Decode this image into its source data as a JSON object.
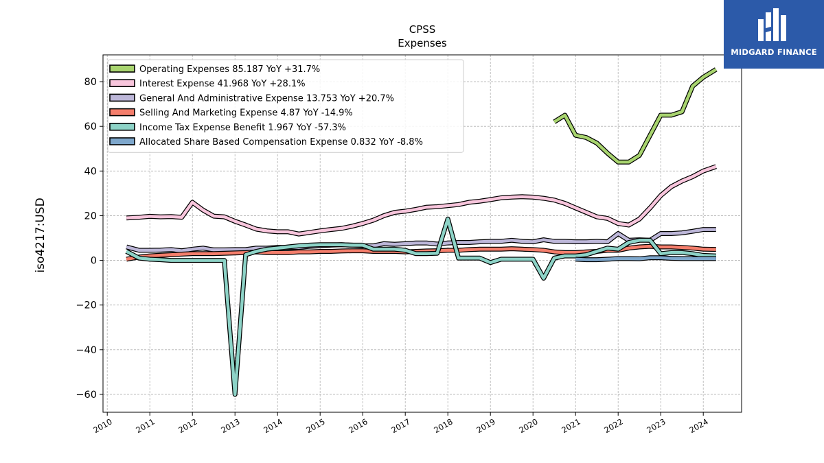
{
  "brand": {
    "name": "MIDGARD FINANCE",
    "bg_color": "#2c5aa9"
  },
  "chart_data": {
    "type": "line",
    "title": "CPSS",
    "subtitle": "Expenses",
    "xlabel": "",
    "ylabel": "iso4217:USD",
    "xlim": [
      2009.9,
      2024.9
    ],
    "ylim": [
      -68,
      92
    ],
    "yticks": [
      -60,
      -40,
      -20,
      0,
      20,
      40,
      60,
      80
    ],
    "xticks": [
      "2010",
      "2011",
      "2012",
      "2013",
      "2014",
      "2015",
      "2016",
      "2017",
      "2018",
      "2019",
      "2020",
      "2021",
      "2022",
      "2023",
      "2024"
    ],
    "grid": true,
    "legend_position": "upper-left",
    "series": [
      {
        "name": "Operating Expenses",
        "legend": "Operating Expenses  85.187 YoY +31.7%",
        "color": "#a8d46f",
        "points": [
          [
            2020.5,
            62
          ],
          [
            2020.75,
            65
          ],
          [
            2021.0,
            56
          ],
          [
            2021.25,
            55
          ],
          [
            2021.5,
            52.5
          ],
          [
            2021.75,
            48
          ],
          [
            2022.0,
            44
          ],
          [
            2022.25,
            44
          ],
          [
            2022.5,
            47
          ],
          [
            2022.75,
            56
          ],
          [
            2023.0,
            65
          ],
          [
            2023.25,
            65
          ],
          [
            2023.5,
            66.5
          ],
          [
            2023.75,
            78
          ],
          [
            2024.0,
            82
          ],
          [
            2024.3,
            85.5
          ]
        ]
      },
      {
        "name": "Interest Expense",
        "legend": "Interest Expense  41.968 YoY +28.1%",
        "color": "#f8c5dc",
        "points": [
          [
            2010.45,
            19
          ],
          [
            2010.75,
            19.3
          ],
          [
            2011.0,
            19.7
          ],
          [
            2011.25,
            19.5
          ],
          [
            2011.5,
            19.6
          ],
          [
            2011.75,
            19.3
          ],
          [
            2012.0,
            26
          ],
          [
            2012.25,
            22.5
          ],
          [
            2012.5,
            19.8
          ],
          [
            2012.75,
            19.5
          ],
          [
            2013.0,
            17.5
          ],
          [
            2013.25,
            15.8
          ],
          [
            2013.5,
            14
          ],
          [
            2013.75,
            13.2
          ],
          [
            2014.0,
            12.8
          ],
          [
            2014.25,
            12.8
          ],
          [
            2014.5,
            11.8
          ],
          [
            2014.75,
            12.5
          ],
          [
            2015.0,
            13.2
          ],
          [
            2015.25,
            13.8
          ],
          [
            2015.5,
            14.3
          ],
          [
            2015.75,
            15.3
          ],
          [
            2016.0,
            16.5
          ],
          [
            2016.25,
            18
          ],
          [
            2016.5,
            20
          ],
          [
            2016.75,
            21.5
          ],
          [
            2017.0,
            22
          ],
          [
            2017.25,
            22.8
          ],
          [
            2017.5,
            23.8
          ],
          [
            2017.75,
            24
          ],
          [
            2018.0,
            24.5
          ],
          [
            2018.25,
            25
          ],
          [
            2018.5,
            26
          ],
          [
            2018.75,
            26.5
          ],
          [
            2019.0,
            27.2
          ],
          [
            2019.25,
            28
          ],
          [
            2019.5,
            28.3
          ],
          [
            2019.75,
            28.5
          ],
          [
            2020.0,
            28.3
          ],
          [
            2020.25,
            27.8
          ],
          [
            2020.5,
            27
          ],
          [
            2020.75,
            25.5
          ],
          [
            2021.0,
            23.5
          ],
          [
            2021.25,
            21.5
          ],
          [
            2021.5,
            19.5
          ],
          [
            2021.75,
            18.8
          ],
          [
            2022.0,
            16.5
          ],
          [
            2022.25,
            15.8
          ],
          [
            2022.5,
            18.5
          ],
          [
            2022.75,
            23.5
          ],
          [
            2023.0,
            29
          ],
          [
            2023.25,
            33
          ],
          [
            2023.5,
            35.5
          ],
          [
            2023.75,
            37.5
          ],
          [
            2024.0,
            40
          ],
          [
            2024.3,
            42
          ]
        ]
      },
      {
        "name": "General And Administrative Expense",
        "legend": "General And Administrative Expense  13.753 YoY +20.7%",
        "color": "#bdb7d9",
        "points": [
          [
            2010.45,
            6
          ],
          [
            2010.75,
            4.5
          ],
          [
            2011.0,
            4.5
          ],
          [
            2011.25,
            4.6
          ],
          [
            2011.5,
            4.8
          ],
          [
            2011.75,
            4.3
          ],
          [
            2012.0,
            5
          ],
          [
            2012.25,
            5.5
          ],
          [
            2012.5,
            4.7
          ],
          [
            2012.75,
            4.7
          ],
          [
            2013.0,
            4.8
          ],
          [
            2013.25,
            4.8
          ],
          [
            2013.5,
            5.5
          ],
          [
            2013.75,
            5.5
          ],
          [
            2014.0,
            5.8
          ],
          [
            2014.25,
            5.8
          ],
          [
            2014.5,
            5.8
          ],
          [
            2014.75,
            6.3
          ],
          [
            2015.0,
            6.5
          ],
          [
            2015.25,
            6.8
          ],
          [
            2015.5,
            7
          ],
          [
            2015.75,
            6.8
          ],
          [
            2016.0,
            6.5
          ],
          [
            2016.25,
            6.5
          ],
          [
            2016.5,
            7.5
          ],
          [
            2016.75,
            7.2
          ],
          [
            2017.0,
            7.5
          ],
          [
            2017.25,
            7.8
          ],
          [
            2017.5,
            7.8
          ],
          [
            2017.75,
            7.3
          ],
          [
            2018.0,
            7.8
          ],
          [
            2018.25,
            8
          ],
          [
            2018.5,
            8
          ],
          [
            2018.75,
            8.3
          ],
          [
            2019.0,
            8.5
          ],
          [
            2019.25,
            8.5
          ],
          [
            2019.5,
            9
          ],
          [
            2019.75,
            8.5
          ],
          [
            2020.0,
            8.3
          ],
          [
            2020.25,
            9.2
          ],
          [
            2020.5,
            8.5
          ],
          [
            2020.75,
            8.5
          ],
          [
            2021.0,
            8.3
          ],
          [
            2021.25,
            8.3
          ],
          [
            2021.5,
            8.5
          ],
          [
            2021.75,
            8.3
          ],
          [
            2022.0,
            12
          ],
          [
            2022.25,
            9
          ],
          [
            2022.5,
            9.2
          ],
          [
            2022.75,
            9
          ],
          [
            2023.0,
            12
          ],
          [
            2023.25,
            12
          ],
          [
            2023.5,
            12.3
          ],
          [
            2023.75,
            13
          ],
          [
            2024.0,
            13.8
          ],
          [
            2024.3,
            13.8
          ]
        ]
      },
      {
        "name": "Selling And Marketing Expense",
        "legend": "Selling And Marketing Expense  4.87 YoY -14.9%",
        "color": "#f47e6c",
        "points": [
          [
            2010.45,
            0.5
          ],
          [
            2010.75,
            1.5
          ],
          [
            2011.0,
            2
          ],
          [
            2011.25,
            2.3
          ],
          [
            2011.5,
            2.5
          ],
          [
            2011.75,
            2.8
          ],
          [
            2012.0,
            3
          ],
          [
            2012.25,
            3
          ],
          [
            2012.5,
            3
          ],
          [
            2012.75,
            3.2
          ],
          [
            2013.0,
            3.3
          ],
          [
            2013.25,
            3.5
          ],
          [
            2013.5,
            3.8
          ],
          [
            2013.75,
            3.5
          ],
          [
            2014.0,
            3.5
          ],
          [
            2014.25,
            3.5
          ],
          [
            2014.5,
            3.8
          ],
          [
            2014.75,
            3.8
          ],
          [
            2015.0,
            4
          ],
          [
            2015.25,
            4
          ],
          [
            2015.5,
            4.2
          ],
          [
            2015.75,
            4.3
          ],
          [
            2016.0,
            4.3
          ],
          [
            2016.25,
            4
          ],
          [
            2016.5,
            4
          ],
          [
            2016.75,
            4
          ],
          [
            2017.0,
            3.8
          ],
          [
            2017.25,
            4
          ],
          [
            2017.5,
            4.2
          ],
          [
            2017.75,
            4.3
          ],
          [
            2018.0,
            4.5
          ],
          [
            2018.25,
            4.5
          ],
          [
            2018.5,
            4.8
          ],
          [
            2018.75,
            5
          ],
          [
            2019.0,
            5
          ],
          [
            2019.25,
            5
          ],
          [
            2019.5,
            5.2
          ],
          [
            2019.75,
            5
          ],
          [
            2020.0,
            4.8
          ],
          [
            2020.25,
            4.5
          ],
          [
            2020.5,
            3.8
          ],
          [
            2020.75,
            3.5
          ],
          [
            2021.0,
            3.5
          ],
          [
            2021.25,
            3.8
          ],
          [
            2021.5,
            4
          ],
          [
            2021.75,
            4.5
          ],
          [
            2022.0,
            4.5
          ],
          [
            2022.25,
            5.5
          ],
          [
            2022.5,
            6
          ],
          [
            2022.75,
            6.3
          ],
          [
            2023.0,
            6
          ],
          [
            2023.25,
            6
          ],
          [
            2023.5,
            5.8
          ],
          [
            2023.75,
            5.5
          ],
          [
            2024.0,
            5
          ],
          [
            2024.3,
            4.9
          ]
        ]
      },
      {
        "name": "Income Tax Expense Benefit",
        "legend": "Income Tax Expense Benefit  1.967 YoY -57.3%",
        "color": "#8dd3c7",
        "points": [
          [
            2010.45,
            4
          ],
          [
            2010.75,
            1
          ],
          [
            2011.0,
            0.5
          ],
          [
            2011.25,
            0.3
          ],
          [
            2011.5,
            0
          ],
          [
            2011.75,
            0
          ],
          [
            2012.0,
            0
          ],
          [
            2012.25,
            0
          ],
          [
            2012.5,
            0
          ],
          [
            2012.75,
            0
          ],
          [
            2013.0,
            -60
          ],
          [
            2013.25,
            2.5
          ],
          [
            2013.5,
            4
          ],
          [
            2013.75,
            5
          ],
          [
            2014.0,
            5.5
          ],
          [
            2014.25,
            6
          ],
          [
            2014.5,
            6.5
          ],
          [
            2014.75,
            6.8
          ],
          [
            2015.0,
            7
          ],
          [
            2015.25,
            7
          ],
          [
            2015.5,
            7
          ],
          [
            2015.75,
            6.8
          ],
          [
            2016.0,
            6.8
          ],
          [
            2016.25,
            5
          ],
          [
            2016.5,
            5
          ],
          [
            2016.75,
            5
          ],
          [
            2017.0,
            4.5
          ],
          [
            2017.25,
            3
          ],
          [
            2017.5,
            3
          ],
          [
            2017.75,
            3.2
          ],
          [
            2018.0,
            18.5
          ],
          [
            2018.25,
            1
          ],
          [
            2018.5,
            1
          ],
          [
            2018.75,
            1
          ],
          [
            2019.0,
            -1
          ],
          [
            2019.25,
            0.5
          ],
          [
            2019.5,
            0.5
          ],
          [
            2019.75,
            0.5
          ],
          [
            2020.0,
            0.5
          ],
          [
            2020.25,
            -8
          ],
          [
            2020.5,
            1
          ],
          [
            2020.75,
            2
          ],
          [
            2021.0,
            2
          ],
          [
            2021.25,
            2.5
          ],
          [
            2021.5,
            4
          ],
          [
            2021.75,
            5.5
          ],
          [
            2022.0,
            5
          ],
          [
            2022.25,
            8
          ],
          [
            2022.5,
            9
          ],
          [
            2022.75,
            9
          ],
          [
            2023.0,
            3
          ],
          [
            2023.25,
            3.5
          ],
          [
            2023.5,
            3.5
          ],
          [
            2023.75,
            3
          ],
          [
            2024.0,
            2.2
          ],
          [
            2024.3,
            2
          ]
        ]
      },
      {
        "name": "Allocated Share Based Compensation Expense",
        "legend": "Allocated Share Based Compensation Expense  0.832 YoY -8.8%",
        "color": "#7ea7cc",
        "points": [
          [
            2021.0,
            0.5
          ],
          [
            2021.25,
            0.3
          ],
          [
            2021.5,
            0.3
          ],
          [
            2021.75,
            0.5
          ],
          [
            2022.0,
            0.8
          ],
          [
            2022.25,
            0.8
          ],
          [
            2022.5,
            0.7
          ],
          [
            2022.75,
            1.2
          ],
          [
            2023.0,
            1.2
          ],
          [
            2023.25,
            0.9
          ],
          [
            2023.5,
            0.8
          ],
          [
            2023.75,
            0.8
          ],
          [
            2024.0,
            0.8
          ],
          [
            2024.3,
            0.8
          ]
        ]
      }
    ]
  }
}
